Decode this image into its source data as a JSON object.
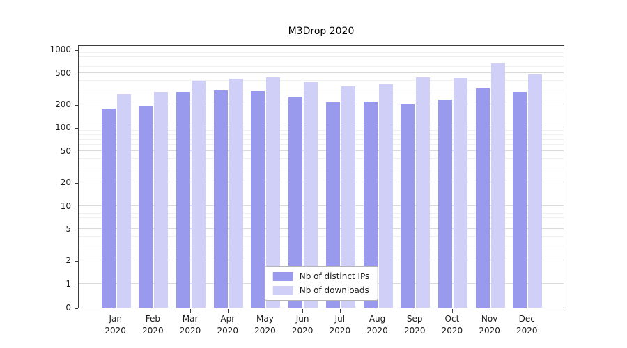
{
  "chart_data": {
    "type": "bar",
    "title": "M3Drop 2020",
    "categories": [
      "Jan 2020",
      "Feb 2020",
      "Mar 2020",
      "Apr 2020",
      "May 2020",
      "Jun 2020",
      "Jul 2020",
      "Aug 2020",
      "Sep 2020",
      "Oct 2020",
      "Nov 2020",
      "Dec 2020"
    ],
    "series": [
      {
        "name": "Nb of distinct IPs",
        "color": "#9999ed",
        "values": [
          175,
          190,
          285,
          300,
          295,
          250,
          210,
          215,
          197,
          230,
          320,
          285
        ]
      },
      {
        "name": "Nb of downloads",
        "color": "#cfcff7",
        "values": [
          270,
          285,
          400,
          420,
          440,
          385,
          340,
          360,
          440,
          430,
          660,
          475
        ]
      }
    ],
    "y_ticks": [
      0,
      1,
      2,
      5,
      10,
      20,
      50,
      100,
      200,
      500,
      1000
    ],
    "yscale": "symlog",
    "ylim": [
      0,
      1100
    ],
    "xlabel": "",
    "ylabel": "",
    "grid": true,
    "legend_position": "lower center"
  }
}
